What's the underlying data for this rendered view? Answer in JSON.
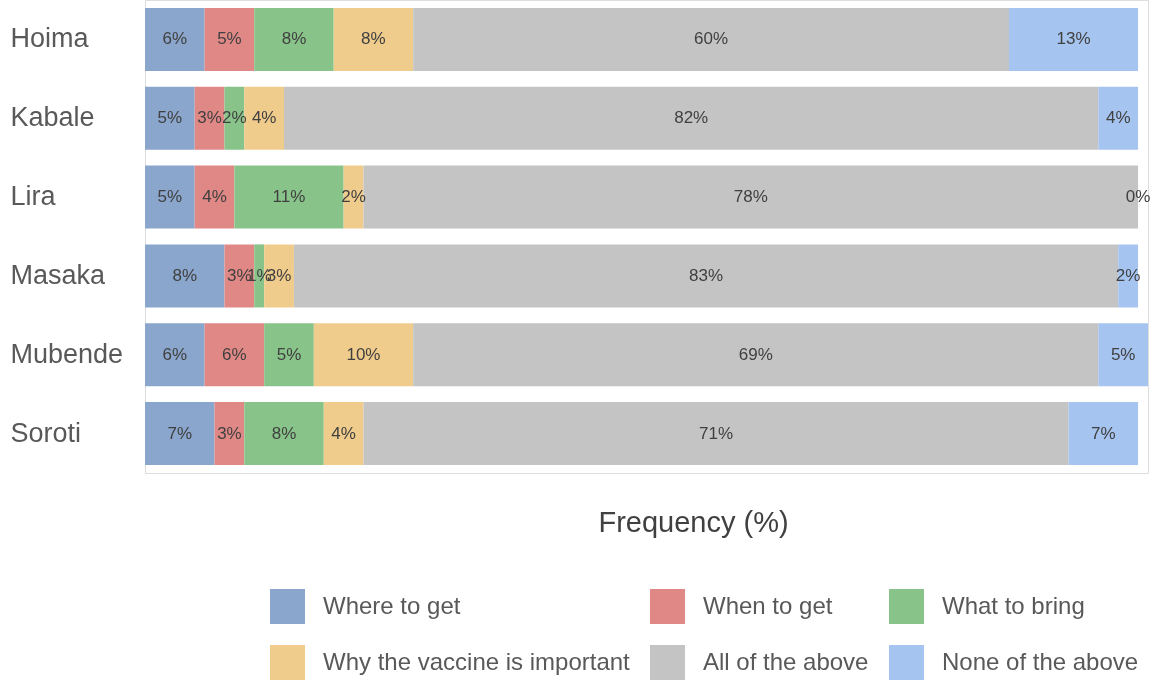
{
  "chart_data": {
    "type": "bar",
    "orientation": "horizontal",
    "stacked": true,
    "categories": [
      "Hoima",
      "Kabale",
      "Lira",
      "Masaka",
      "Mubende",
      "Soroti"
    ],
    "xlabel": "Frequency (%)",
    "legend": "bottom",
    "tick_labels": "y",
    "series": [
      {
        "name": "Where to get",
        "color": "#8aa6cc",
        "values": [
          6,
          5,
          5,
          8,
          6,
          7
        ],
        "value_labels": [
          "6%",
          "5%",
          "5%",
          "8%",
          "6%",
          "7%"
        ]
      },
      {
        "name": "When to get",
        "color": "#e08886",
        "values": [
          5,
          3,
          4,
          3,
          6,
          3
        ],
        "value_labels": [
          "5%",
          "3%",
          "4%",
          "3%",
          "6%",
          "3%"
        ]
      },
      {
        "name": "What to bring",
        "color": "#88c48a",
        "values": [
          8,
          2,
          11,
          1,
          5,
          8
        ],
        "value_labels": [
          "8%",
          "2%",
          "11%",
          "1%",
          "5%",
          "8%"
        ]
      },
      {
        "name": "Why the vaccine is important",
        "color": "#f0cc8c",
        "values": [
          8,
          4,
          2,
          3,
          10,
          4
        ],
        "value_labels": [
          "8%",
          "4%",
          "2%",
          "3%",
          "10%",
          "4%"
        ]
      },
      {
        "name": "All of the above",
        "color": "#c4c4c4",
        "values": [
          60,
          82,
          78,
          83,
          69,
          71
        ],
        "value_labels": [
          "60%",
          "82%",
          "78%",
          "83%",
          "69%",
          "71%"
        ]
      },
      {
        "name": "None of the above",
        "color": "#a6c4f0",
        "values": [
          13,
          4,
          0,
          2,
          5,
          7
        ],
        "value_labels": [
          "13%",
          "4%",
          "0%",
          "2%",
          "5%",
          "7%"
        ]
      }
    ]
  }
}
